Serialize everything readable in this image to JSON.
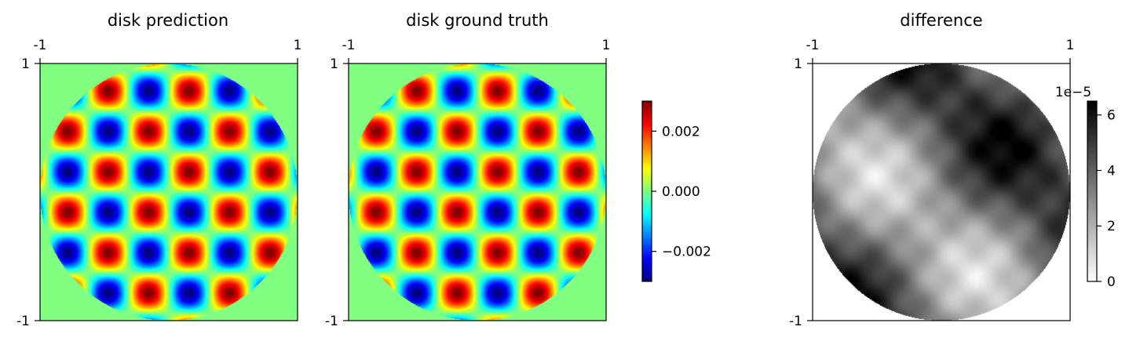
{
  "chart_data": [
    {
      "type": "heatmap",
      "title": "disk prediction",
      "x_ticks": [
        "-1",
        "1"
      ],
      "y_ticks": [
        "1",
        "-1"
      ],
      "xlim": [
        -1,
        1
      ],
      "ylim": [
        -1,
        1
      ],
      "x_ticks_position": "top",
      "mask": "unit disk",
      "background_value": 0.0,
      "field": "0.003 * sin(10 * x) * sin(10 * y) (approx.)",
      "colormap": "jet",
      "vmin": -0.003,
      "vmax": 0.003
    },
    {
      "type": "heatmap",
      "title": "disk ground truth",
      "x_ticks": [
        "-1",
        "1"
      ],
      "y_ticks": [
        "1",
        "-1"
      ],
      "xlim": [
        -1,
        1
      ],
      "ylim": [
        -1,
        1
      ],
      "x_ticks_position": "top",
      "mask": "unit disk",
      "background_value": 0.0,
      "field": "0.003 * sin(10 * x) * sin(10 * y) (approx.)",
      "colormap": "jet",
      "vmin": -0.003,
      "vmax": 0.003
    },
    {
      "type": "heatmap",
      "title": "difference",
      "x_ticks": [
        "-1",
        "1"
      ],
      "y_ticks": [
        "1",
        "-1"
      ],
      "xlim": [
        -1,
        1
      ],
      "ylim": [
        -1,
        1
      ],
      "x_ticks_position": "top",
      "mask": "unit disk",
      "outside_disk": "white",
      "colormap": "gray_r",
      "vmin": 0,
      "vmax": 6.5e-05
    }
  ],
  "colorbars": [
    {
      "colormap": "jet",
      "vmin": -0.003,
      "vmax": 0.003,
      "ticks": [
        {
          "value": 0.002,
          "label": "0.002"
        },
        {
          "value": 0.0,
          "label": "0.000"
        },
        {
          "value": -0.002,
          "label": "−0.002"
        }
      ]
    },
    {
      "colormap": "gray_r",
      "vmin": 0,
      "vmax": 6.5,
      "offset_label": "1e−5",
      "ticks": [
        {
          "value": 6,
          "label": "6"
        },
        {
          "value": 4,
          "label": "4"
        },
        {
          "value": 2,
          "label": "2"
        },
        {
          "value": 0,
          "label": "0"
        }
      ]
    }
  ]
}
